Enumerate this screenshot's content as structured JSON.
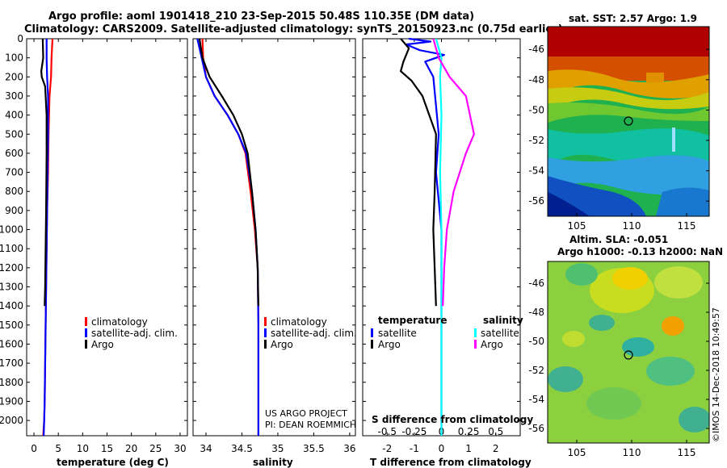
{
  "header": {
    "line1": "Argo profile: aoml 1901418_210 23-Sep-2015 50.48S 110.35E (DM data)",
    "line2": "Climatology: CARS2009. Satellite-adjusted climatology: synTS_20150923.nc (0.75d earlier)"
  },
  "colors": {
    "climatology": "#ff0000",
    "satellite": "#0000ff",
    "argo": "#000000",
    "sat_salinity": "#00ffff",
    "argo_salinity": "#ff00ff"
  },
  "credit": {
    "line1": "US ARGO PROJECT",
    "line2": "PI: DEAN ROEMMICH"
  },
  "sst_map": {
    "title": "sat. SST: 2.57 Argo: 1.9",
    "xticks": [
      "105",
      "110",
      "115"
    ],
    "yticks": [
      "-46",
      "-48",
      "-50",
      "-52",
      "-54",
      "-56"
    ]
  },
  "sla_map": {
    "title1": "Altim. SLA: -0.051",
    "title2": "Argo h1000: -0.13 h2000: NaN",
    "xticks": [
      "105",
      "110",
      "115"
    ],
    "yticks": [
      "-46",
      "-48",
      "-50",
      "-52",
      "-54",
      "-56"
    ]
  },
  "imos_stamp": "©IMOS 14-Dec-2018 10:49:57",
  "chart_data": [
    {
      "type": "line",
      "xlabel": "temperature (deg C)",
      "ylim": [
        2080,
        0
      ],
      "xlim": [
        -1.5,
        31.5
      ],
      "xticks": [
        "0",
        "5",
        "10",
        "15",
        "20",
        "25",
        "30"
      ],
      "xtick_values": [
        0,
        5,
        10,
        15,
        20,
        25,
        30
      ],
      "yticks": [
        "0",
        "100",
        "200",
        "300",
        "400",
        "500",
        "600",
        "700",
        "800",
        "900",
        "1000",
        "1100",
        "1200",
        "1300",
        "1400",
        "1500",
        "1600",
        "1700",
        "1800",
        "1900",
        "2000"
      ],
      "ytick_values": [
        0,
        100,
        200,
        300,
        400,
        500,
        600,
        700,
        800,
        900,
        1000,
        1100,
        1200,
        1300,
        1400,
        1500,
        1600,
        1700,
        1800,
        1900,
        2000
      ],
      "legend": [
        "climatology",
        "satellite-adj. clim.",
        "Argo"
      ],
      "series": [
        {
          "name": "climatology",
          "color": "#ff0000",
          "x": [
            3.8,
            3.6,
            3.5,
            3.2,
            3.0,
            2.9,
            2.7,
            2.6,
            2.5,
            2.4,
            2.3,
            2.2,
            2.1,
            1.9
          ],
          "y": [
            0,
            100,
            200,
            300,
            500,
            700,
            900,
            1100,
            1300,
            1500,
            1700,
            1900,
            2000,
            2080
          ]
        },
        {
          "name": "satellite-adj. clim.",
          "color": "#0000ff",
          "x": [
            2.6,
            2.6,
            2.7,
            2.9,
            2.9,
            2.8,
            2.7,
            2.6,
            2.5,
            2.4,
            2.3,
            2.2,
            2.1,
            2.0
          ],
          "y": [
            0,
            100,
            200,
            300,
            500,
            700,
            900,
            1100,
            1300,
            1500,
            1700,
            1900,
            2000,
            2080
          ]
        },
        {
          "name": "Argo",
          "color": "#000000",
          "x": [
            1.8,
            1.9,
            1.5,
            1.6,
            2.3,
            2.6,
            2.6,
            2.5,
            2.4,
            2.3,
            2.2
          ],
          "y": [
            0,
            100,
            170,
            200,
            250,
            400,
            600,
            900,
            1100,
            1300,
            1400
          ]
        }
      ]
    },
    {
      "type": "line",
      "xlabel": "salinity",
      "ylim": [
        2080,
        0
      ],
      "xlim": [
        33.82,
        36.08
      ],
      "xticks": [
        "34",
        "34.5",
        "35",
        "35.5",
        "36"
      ],
      "xtick_values": [
        34,
        34.5,
        35,
        35.5,
        36
      ],
      "legend": [
        "climatology",
        "satellite-adj. clim.",
        "Argo"
      ],
      "series": [
        {
          "name": "climatology",
          "color": "#ff0000",
          "x": [
            33.95,
            33.96,
            34.0,
            34.12,
            34.3,
            34.45,
            34.55,
            34.62,
            34.68,
            34.72,
            34.73,
            34.73,
            34.73
          ],
          "y": [
            0,
            100,
            200,
            300,
            400,
            500,
            600,
            800,
            1000,
            1200,
            1500,
            1800,
            2080
          ]
        },
        {
          "name": "satellite-adj. clim.",
          "color": "#0000ff",
          "x": [
            33.88,
            33.94,
            34.0,
            34.12,
            34.3,
            34.45,
            34.56,
            34.64,
            34.69,
            34.72,
            34.73,
            34.73,
            34.73
          ],
          "y": [
            0,
            100,
            200,
            300,
            400,
            500,
            600,
            800,
            1000,
            1200,
            1500,
            1800,
            2080
          ]
        },
        {
          "name": "Argo",
          "color": "#000000",
          "x": [
            33.91,
            33.95,
            34.05,
            34.22,
            34.38,
            34.5,
            34.58,
            34.64,
            34.69,
            34.72,
            34.73
          ],
          "y": [
            0,
            100,
            200,
            300,
            400,
            500,
            600,
            800,
            1000,
            1200,
            1400
          ]
        }
      ]
    },
    {
      "type": "line",
      "xlabel": "T difference from climatology",
      "title": "S difference from climatology",
      "ylim": [
        2080,
        0
      ],
      "xlim": [
        -2.9,
        2.9
      ],
      "xticks": [
        "-2",
        "-1",
        "0",
        "1",
        "2"
      ],
      "xtick_values": [
        -2,
        -1,
        0,
        1,
        2
      ],
      "top_xticks": [
        "-0.5",
        "-0.25",
        "0",
        "0.25",
        "0.5"
      ],
      "legend": {
        "temperature": [
          "satellite",
          "Argo"
        ],
        "salinity": [
          "satellite",
          "Argo"
        ]
      },
      "series": [
        {
          "name": "temperature satellite",
          "color": "#0000ff",
          "x": [
            -1.2,
            -0.4,
            -1.3,
            -0.8,
            0.1,
            -0.6,
            -0.3,
            -0.1,
            -0.2,
            0.0,
            0.0,
            0.0,
            0.0
          ],
          "y": [
            0,
            15,
            30,
            60,
            85,
            120,
            200,
            500,
            700,
            1000,
            1400,
            1800,
            2080
          ]
        },
        {
          "name": "temperature Argo",
          "color": "#000000",
          "x": [
            -1.5,
            -1.2,
            -1.4,
            -1.5,
            -1.1,
            -0.7,
            -0.2,
            -0.25,
            -0.3,
            -0.25,
            -0.2
          ],
          "y": [
            0,
            50,
            120,
            170,
            220,
            300,
            500,
            800,
            1000,
            1200,
            1400
          ]
        },
        {
          "name": "salinity satellite",
          "color": "#00ffff",
          "x": [
            -0.2,
            0.0,
            -0.05,
            0.0,
            -0.05,
            0.0,
            0.0,
            0.0
          ],
          "y": [
            0,
            100,
            200,
            400,
            700,
            1000,
            1500,
            2080
          ]
        },
        {
          "name": "salinity Argo",
          "color": "#ff00ff",
          "x": [
            -0.3,
            -0.1,
            0.3,
            0.9,
            1.2,
            0.9,
            0.45,
            0.2,
            0.1,
            0.05
          ],
          "y": [
            0,
            100,
            200,
            300,
            500,
            600,
            800,
            1000,
            1200,
            1400
          ]
        }
      ]
    }
  ]
}
